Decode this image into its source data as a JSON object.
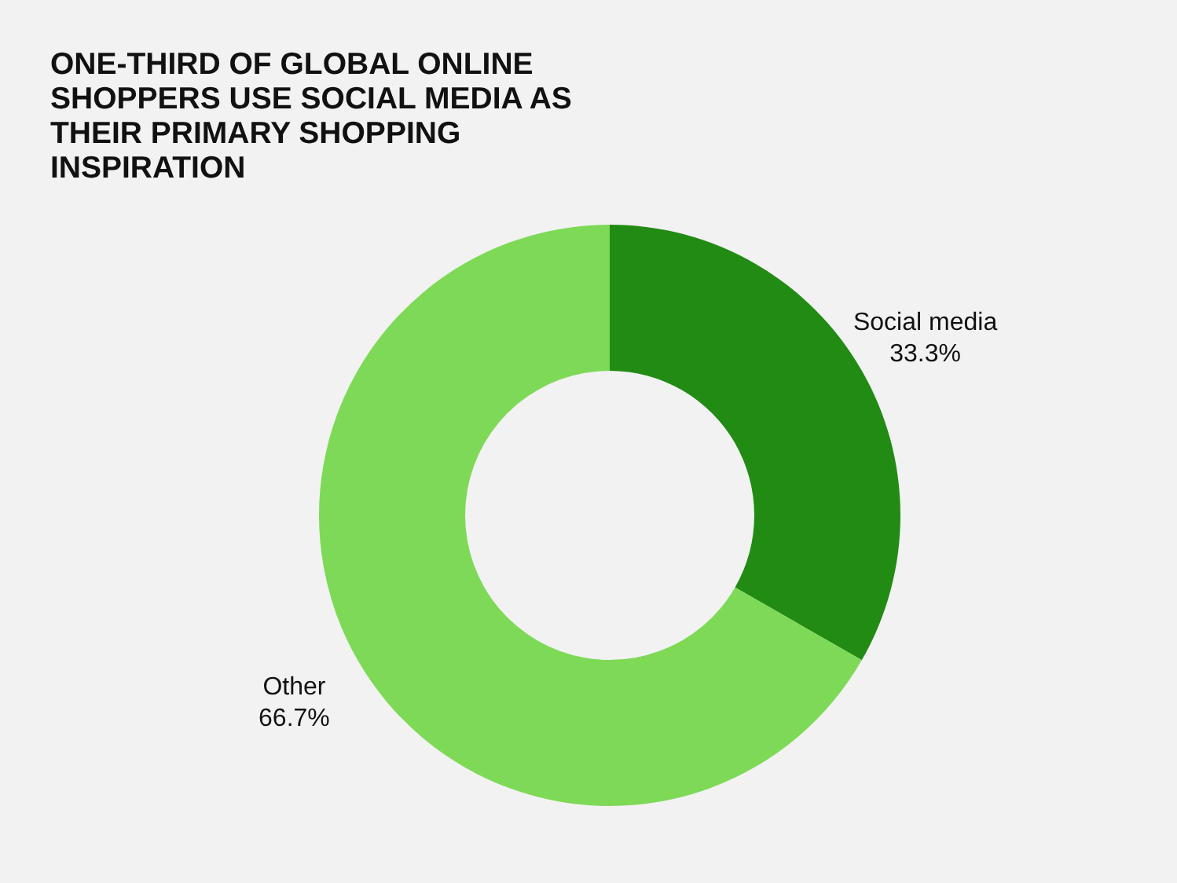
{
  "chart_data": {
    "type": "donut",
    "title": "ONE-THIRD OF GLOBAL ONLINE SHOPPERS USE SOCIAL MEDIA AS THEIR PRIMARY SHOPPING INSPIRATION",
    "categories": [
      "Social media",
      "Other"
    ],
    "values": [
      33.3,
      66.7
    ],
    "colors": [
      "#228b14",
      "#7ed957"
    ],
    "value_labels": [
      "33.3%",
      "66.7%"
    ]
  }
}
